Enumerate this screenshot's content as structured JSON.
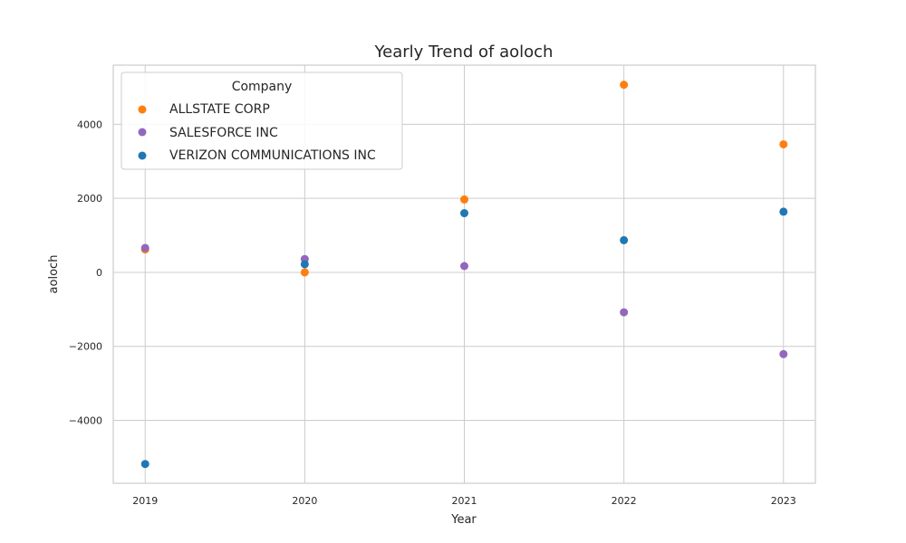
{
  "chart_data": {
    "type": "scatter",
    "title": "Yearly Trend of aoloch",
    "xlabel": "Year",
    "ylabel": "aoloch",
    "x": [
      2019,
      2020,
      2021,
      2022,
      2023
    ],
    "xlim": [
      2018.8,
      2023.2
    ],
    "ylim": [
      -5700,
      5600
    ],
    "yticks": [
      -4000,
      -2000,
      0,
      2000,
      4000
    ],
    "ytick_labels": [
      "−4000",
      "−2000",
      "0",
      "2000",
      "4000"
    ],
    "xtick_labels": [
      "2019",
      "2020",
      "2021",
      "2022",
      "2023"
    ],
    "grid": true,
    "legend": {
      "title": "Company",
      "placement": "upper-left"
    },
    "series": [
      {
        "name": "ALLSTATE CORP",
        "color": "#ff7f0e",
        "values": [
          620,
          0,
          1970,
          5070,
          3460
        ]
      },
      {
        "name": "SALESFORCE INC",
        "color": "#9467bd",
        "values": [
          660,
          360,
          170,
          -1080,
          -2210
        ]
      },
      {
        "name": "VERIZON COMMUNICATIONS INC",
        "color": "#1f77b4",
        "values": [
          -5180,
          220,
          1600,
          870,
          1640
        ]
      }
    ]
  }
}
